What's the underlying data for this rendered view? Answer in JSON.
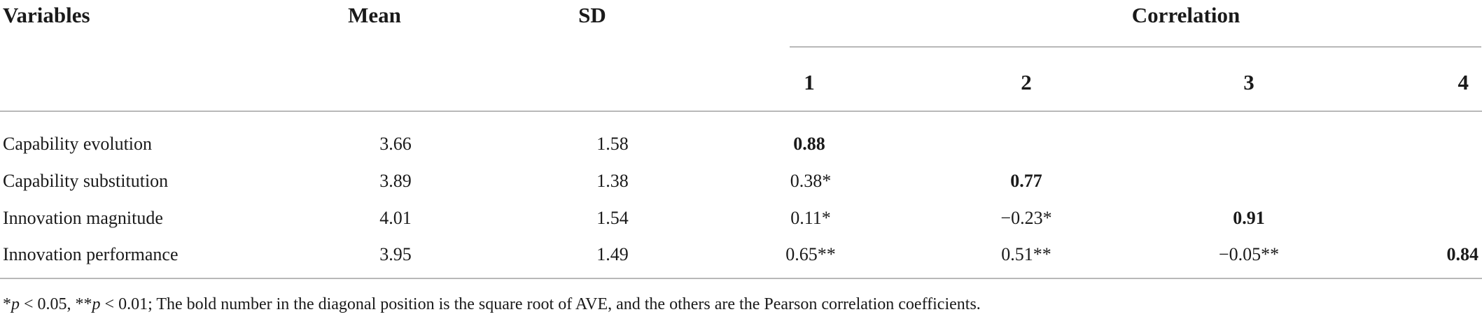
{
  "table": {
    "headers": {
      "variables": "Variables",
      "mean": "Mean",
      "sd": "SD",
      "correlation": "Correlation",
      "corr_cols": [
        "1",
        "2",
        "3",
        "4"
      ]
    },
    "rows": [
      {
        "variable": "Capability evolution",
        "mean": "3.66",
        "sd": "1.58",
        "corr": [
          "0.88",
          "",
          "",
          ""
        ]
      },
      {
        "variable": "Capability substitution",
        "mean": "3.89",
        "sd": "1.38",
        "corr": [
          "0.38*",
          "0.77",
          "",
          ""
        ]
      },
      {
        "variable": "Innovation magnitude",
        "mean": "4.01",
        "sd": "1.54",
        "corr": [
          "0.11*",
          "−0.23*",
          "0.91",
          ""
        ]
      },
      {
        "variable": "Innovation performance",
        "mean": "3.95",
        "sd": "1.49",
        "corr": [
          "0.65**",
          "0.51**",
          "−0.05**",
          "0.84"
        ]
      }
    ],
    "footnote": {
      "sig1_star": "*",
      "sig1_p": "p",
      "sig1_rest": " < 0.05, ",
      "sig2_star": "**",
      "sig2_p": "p",
      "sig2_rest": " < 0.01; The bold number in the diagonal position is the square root of AVE, and the others are the Pearson correlation coefficients."
    }
  }
}
